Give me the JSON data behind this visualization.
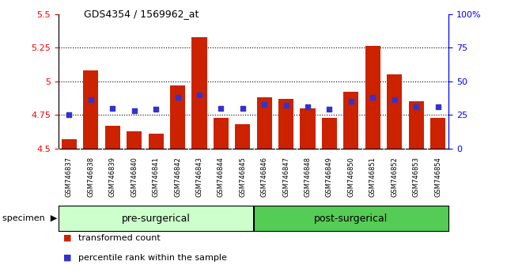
{
  "title": "GDS4354 / 1569962_at",
  "samples": [
    "GSM746837",
    "GSM746838",
    "GSM746839",
    "GSM746840",
    "GSM746841",
    "GSM746842",
    "GSM746843",
    "GSM746844",
    "GSM746845",
    "GSM746846",
    "GSM746847",
    "GSM746848",
    "GSM746849",
    "GSM746850",
    "GSM746851",
    "GSM746852",
    "GSM746853",
    "GSM746854"
  ],
  "bar_values": [
    4.57,
    5.08,
    4.67,
    4.63,
    4.61,
    4.97,
    5.33,
    4.73,
    4.68,
    4.88,
    4.87,
    4.8,
    4.73,
    4.92,
    5.26,
    5.05,
    4.85,
    4.73
  ],
  "percentile_values": [
    25,
    36,
    30,
    28,
    29,
    38,
    40,
    30,
    30,
    33,
    32,
    31,
    29,
    35,
    38,
    36,
    31,
    31
  ],
  "bar_base": 4.5,
  "ylim_left": [
    4.5,
    5.5
  ],
  "ylim_right": [
    0,
    100
  ],
  "yticks_left": [
    4.5,
    4.75,
    5.0,
    5.25,
    5.5
  ],
  "yticks_right": [
    0,
    25,
    50,
    75,
    100
  ],
  "ytick_labels_left": [
    "4.5",
    "4.75",
    "5",
    "5.25",
    "5.5"
  ],
  "ytick_labels_right": [
    "0",
    "25",
    "50",
    "75",
    "100%"
  ],
  "grid_values": [
    4.75,
    5.0,
    5.25
  ],
  "bar_color": "#CC2200",
  "blue_color": "#3333CC",
  "pre_surgical_count": 9,
  "post_surgical_count": 9,
  "pre_surgical_label": "pre-surgerical",
  "post_surgical_label": "post-surgerical",
  "specimen_label": "specimen",
  "legend_bar_label": "transformed count",
  "legend_blue_label": "percentile rank within the sample",
  "pre_bg_color": "#ccffcc",
  "post_bg_color": "#55cc55",
  "sample_bg_color": "#cccccc",
  "bar_width": 0.7
}
